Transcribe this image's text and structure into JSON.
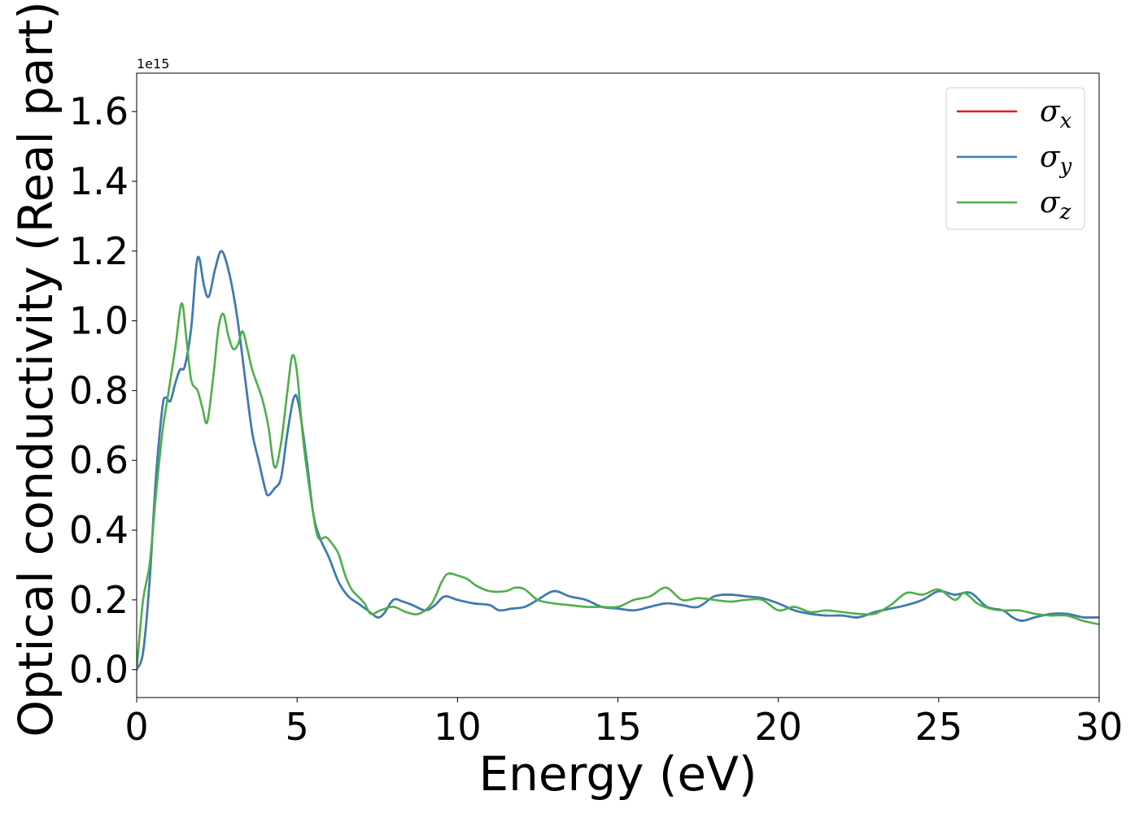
{
  "chart_data": {
    "type": "line",
    "title": "",
    "xlabel": "Energy (eV)",
    "ylabel": "Optical conductivity (Real part)",
    "y_offset_label": "1e15",
    "xlim": [
      0,
      30
    ],
    "ylim": [
      -0.08,
      1.71
    ],
    "xticks": [
      0,
      5,
      10,
      15,
      20,
      25,
      30
    ],
    "yticks": [
      0.0,
      0.2,
      0.4,
      0.6,
      0.8,
      1.0,
      1.2,
      1.4,
      1.6
    ],
    "xtick_labels": [
      "0",
      "5",
      "10",
      "15",
      "20",
      "25",
      "30"
    ],
    "ytick_labels": [
      "0.0",
      "0.2",
      "0.4",
      "0.6",
      "0.8",
      "1.0",
      "1.2",
      "1.4",
      "1.6"
    ],
    "grid": false,
    "legend_position": "top-right",
    "series": [
      {
        "name": "σ_x",
        "legend_symbol": "σ",
        "legend_sub": "x",
        "color": "#e41a1c",
        "points": [
          [
            0,
            0.0
          ],
          [
            0.2,
            0.05
          ],
          [
            0.4,
            0.25
          ],
          [
            0.6,
            0.55
          ],
          [
            0.8,
            0.75
          ],
          [
            0.9,
            0.78
          ],
          [
            1.05,
            0.77
          ],
          [
            1.2,
            0.82
          ],
          [
            1.35,
            0.86
          ],
          [
            1.5,
            0.87
          ],
          [
            1.7,
            0.98
          ],
          [
            1.85,
            1.15
          ],
          [
            1.95,
            1.18
          ],
          [
            2.1,
            1.1
          ],
          [
            2.25,
            1.07
          ],
          [
            2.45,
            1.15
          ],
          [
            2.65,
            1.2
          ],
          [
            2.9,
            1.13
          ],
          [
            3.15,
            1.0
          ],
          [
            3.4,
            0.82
          ],
          [
            3.6,
            0.68
          ],
          [
            3.8,
            0.6
          ],
          [
            4.0,
            0.52
          ],
          [
            4.1,
            0.5
          ],
          [
            4.3,
            0.52
          ],
          [
            4.5,
            0.55
          ],
          [
            4.7,
            0.68
          ],
          [
            4.9,
            0.78
          ],
          [
            5.05,
            0.76
          ],
          [
            5.3,
            0.6
          ],
          [
            5.5,
            0.45
          ],
          [
            5.7,
            0.38
          ],
          [
            6.0,
            0.32
          ],
          [
            6.3,
            0.25
          ],
          [
            6.6,
            0.21
          ],
          [
            6.9,
            0.19
          ],
          [
            7.2,
            0.17
          ],
          [
            7.5,
            0.15
          ],
          [
            7.7,
            0.16
          ],
          [
            8.0,
            0.2
          ],
          [
            8.3,
            0.195
          ],
          [
            8.6,
            0.185
          ],
          [
            9.0,
            0.17
          ],
          [
            9.3,
            0.185
          ],
          [
            9.6,
            0.21
          ],
          [
            10.0,
            0.2
          ],
          [
            10.5,
            0.19
          ],
          [
            11.0,
            0.185
          ],
          [
            11.3,
            0.17
          ],
          [
            11.7,
            0.175
          ],
          [
            12.1,
            0.18
          ],
          [
            12.5,
            0.2
          ],
          [
            13.0,
            0.225
          ],
          [
            13.5,
            0.21
          ],
          [
            14.0,
            0.2
          ],
          [
            14.5,
            0.18
          ],
          [
            15.0,
            0.175
          ],
          [
            15.5,
            0.17
          ],
          [
            16.0,
            0.18
          ],
          [
            16.5,
            0.19
          ],
          [
            17.0,
            0.185
          ],
          [
            17.5,
            0.18
          ],
          [
            18.0,
            0.21
          ],
          [
            18.5,
            0.215
          ],
          [
            19.0,
            0.21
          ],
          [
            19.5,
            0.205
          ],
          [
            20.0,
            0.19
          ],
          [
            20.5,
            0.17
          ],
          [
            21.0,
            0.16
          ],
          [
            21.5,
            0.155
          ],
          [
            22.0,
            0.155
          ],
          [
            22.5,
            0.15
          ],
          [
            23.0,
            0.165
          ],
          [
            23.5,
            0.175
          ],
          [
            24.0,
            0.185
          ],
          [
            24.5,
            0.2
          ],
          [
            25.0,
            0.225
          ],
          [
            25.5,
            0.215
          ],
          [
            26.0,
            0.22
          ],
          [
            26.5,
            0.18
          ],
          [
            27.0,
            0.17
          ],
          [
            27.3,
            0.15
          ],
          [
            27.6,
            0.14
          ],
          [
            28.0,
            0.15
          ],
          [
            28.5,
            0.16
          ],
          [
            29.0,
            0.16
          ],
          [
            29.5,
            0.15
          ],
          [
            30.0,
            0.15
          ]
        ]
      },
      {
        "name": "σ_y",
        "legend_symbol": "σ",
        "legend_sub": "y",
        "color": "#377eb8",
        "points": [
          [
            0,
            0.0
          ],
          [
            0.2,
            0.05
          ],
          [
            0.4,
            0.25
          ],
          [
            0.6,
            0.55
          ],
          [
            0.8,
            0.75
          ],
          [
            0.9,
            0.78
          ],
          [
            1.05,
            0.77
          ],
          [
            1.2,
            0.82
          ],
          [
            1.35,
            0.86
          ],
          [
            1.5,
            0.87
          ],
          [
            1.7,
            0.98
          ],
          [
            1.85,
            1.15
          ],
          [
            1.95,
            1.18
          ],
          [
            2.1,
            1.1
          ],
          [
            2.25,
            1.07
          ],
          [
            2.45,
            1.15
          ],
          [
            2.65,
            1.2
          ],
          [
            2.9,
            1.13
          ],
          [
            3.15,
            1.0
          ],
          [
            3.4,
            0.82
          ],
          [
            3.6,
            0.68
          ],
          [
            3.8,
            0.6
          ],
          [
            4.0,
            0.52
          ],
          [
            4.1,
            0.5
          ],
          [
            4.3,
            0.52
          ],
          [
            4.5,
            0.55
          ],
          [
            4.7,
            0.68
          ],
          [
            4.9,
            0.78
          ],
          [
            5.05,
            0.76
          ],
          [
            5.3,
            0.6
          ],
          [
            5.5,
            0.45
          ],
          [
            5.7,
            0.38
          ],
          [
            6.0,
            0.32
          ],
          [
            6.3,
            0.25
          ],
          [
            6.6,
            0.21
          ],
          [
            6.9,
            0.19
          ],
          [
            7.2,
            0.17
          ],
          [
            7.5,
            0.15
          ],
          [
            7.7,
            0.16
          ],
          [
            8.0,
            0.2
          ],
          [
            8.3,
            0.195
          ],
          [
            8.6,
            0.185
          ],
          [
            9.0,
            0.17
          ],
          [
            9.3,
            0.185
          ],
          [
            9.6,
            0.21
          ],
          [
            10.0,
            0.2
          ],
          [
            10.5,
            0.19
          ],
          [
            11.0,
            0.185
          ],
          [
            11.3,
            0.17
          ],
          [
            11.7,
            0.175
          ],
          [
            12.1,
            0.18
          ],
          [
            12.5,
            0.2
          ],
          [
            13.0,
            0.225
          ],
          [
            13.5,
            0.21
          ],
          [
            14.0,
            0.2
          ],
          [
            14.5,
            0.18
          ],
          [
            15.0,
            0.175
          ],
          [
            15.5,
            0.17
          ],
          [
            16.0,
            0.18
          ],
          [
            16.5,
            0.19
          ],
          [
            17.0,
            0.185
          ],
          [
            17.5,
            0.18
          ],
          [
            18.0,
            0.21
          ],
          [
            18.5,
            0.215
          ],
          [
            19.0,
            0.21
          ],
          [
            19.5,
            0.205
          ],
          [
            20.0,
            0.19
          ],
          [
            20.5,
            0.17
          ],
          [
            21.0,
            0.16
          ],
          [
            21.5,
            0.155
          ],
          [
            22.0,
            0.155
          ],
          [
            22.5,
            0.15
          ],
          [
            23.0,
            0.165
          ],
          [
            23.5,
            0.175
          ],
          [
            24.0,
            0.185
          ],
          [
            24.5,
            0.2
          ],
          [
            25.0,
            0.225
          ],
          [
            25.5,
            0.215
          ],
          [
            26.0,
            0.22
          ],
          [
            26.5,
            0.18
          ],
          [
            27.0,
            0.17
          ],
          [
            27.3,
            0.15
          ],
          [
            27.6,
            0.14
          ],
          [
            28.0,
            0.15
          ],
          [
            28.5,
            0.16
          ],
          [
            29.0,
            0.16
          ],
          [
            29.5,
            0.15
          ],
          [
            30.0,
            0.15
          ]
        ]
      },
      {
        "name": "σ_z",
        "legend_symbol": "σ",
        "legend_sub": "z",
        "color": "#4daf4a",
        "points": [
          [
            0,
            0.0
          ],
          [
            0.2,
            0.2
          ],
          [
            0.4,
            0.3
          ],
          [
            0.6,
            0.5
          ],
          [
            0.8,
            0.68
          ],
          [
            1.0,
            0.8
          ],
          [
            1.2,
            0.92
          ],
          [
            1.4,
            1.05
          ],
          [
            1.55,
            0.95
          ],
          [
            1.7,
            0.83
          ],
          [
            1.9,
            0.8
          ],
          [
            2.05,
            0.75
          ],
          [
            2.2,
            0.71
          ],
          [
            2.4,
            0.85
          ],
          [
            2.55,
            0.98
          ],
          [
            2.7,
            1.02
          ],
          [
            2.85,
            0.96
          ],
          [
            3.0,
            0.92
          ],
          [
            3.15,
            0.93
          ],
          [
            3.3,
            0.97
          ],
          [
            3.45,
            0.92
          ],
          [
            3.6,
            0.86
          ],
          [
            3.9,
            0.78
          ],
          [
            4.1,
            0.7
          ],
          [
            4.3,
            0.58
          ],
          [
            4.5,
            0.65
          ],
          [
            4.7,
            0.8
          ],
          [
            4.85,
            0.9
          ],
          [
            5.0,
            0.85
          ],
          [
            5.2,
            0.65
          ],
          [
            5.45,
            0.48
          ],
          [
            5.65,
            0.38
          ],
          [
            5.9,
            0.38
          ],
          [
            6.1,
            0.36
          ],
          [
            6.3,
            0.33
          ],
          [
            6.5,
            0.27
          ],
          [
            6.7,
            0.23
          ],
          [
            6.9,
            0.21
          ],
          [
            7.1,
            0.19
          ],
          [
            7.3,
            0.16
          ],
          [
            7.6,
            0.17
          ],
          [
            8.0,
            0.18
          ],
          [
            8.4,
            0.165
          ],
          [
            8.8,
            0.16
          ],
          [
            9.2,
            0.19
          ],
          [
            9.5,
            0.25
          ],
          [
            9.7,
            0.275
          ],
          [
            10.0,
            0.27
          ],
          [
            10.3,
            0.26
          ],
          [
            10.6,
            0.24
          ],
          [
            11.0,
            0.225
          ],
          [
            11.5,
            0.225
          ],
          [
            11.8,
            0.235
          ],
          [
            12.1,
            0.23
          ],
          [
            12.5,
            0.2
          ],
          [
            13.0,
            0.19
          ],
          [
            13.5,
            0.185
          ],
          [
            14.0,
            0.18
          ],
          [
            14.5,
            0.18
          ],
          [
            15.0,
            0.18
          ],
          [
            15.5,
            0.2
          ],
          [
            16.0,
            0.21
          ],
          [
            16.5,
            0.235
          ],
          [
            17.0,
            0.2
          ],
          [
            17.5,
            0.205
          ],
          [
            18.0,
            0.2
          ],
          [
            18.5,
            0.195
          ],
          [
            19.0,
            0.2
          ],
          [
            19.5,
            0.2
          ],
          [
            20.0,
            0.17
          ],
          [
            20.5,
            0.18
          ],
          [
            21.0,
            0.165
          ],
          [
            21.5,
            0.17
          ],
          [
            22.0,
            0.165
          ],
          [
            22.5,
            0.16
          ],
          [
            23.0,
            0.16
          ],
          [
            23.5,
            0.185
          ],
          [
            24.0,
            0.22
          ],
          [
            24.5,
            0.215
          ],
          [
            25.0,
            0.23
          ],
          [
            25.5,
            0.2
          ],
          [
            25.8,
            0.22
          ],
          [
            26.2,
            0.19
          ],
          [
            26.6,
            0.175
          ],
          [
            27.0,
            0.17
          ],
          [
            27.5,
            0.17
          ],
          [
            28.0,
            0.16
          ],
          [
            28.5,
            0.155
          ],
          [
            29.0,
            0.155
          ],
          [
            29.5,
            0.14
          ],
          [
            30.0,
            0.13
          ]
        ]
      }
    ]
  }
}
